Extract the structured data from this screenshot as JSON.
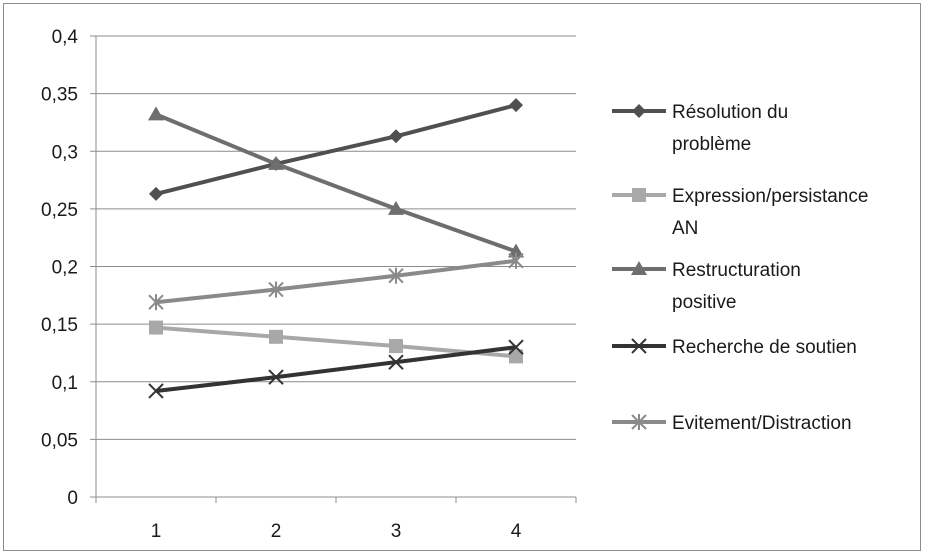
{
  "chart_data": {
    "type": "line",
    "title": "",
    "xlabel": "",
    "ylabel": "",
    "categories": [
      "1",
      "2",
      "3",
      "4"
    ],
    "y_ticks": [
      "0",
      "0,05",
      "0,1",
      "0,15",
      "0,2",
      "0,25",
      "0,3",
      "0,35",
      "0,4"
    ],
    "ylim": [
      0,
      0.4
    ],
    "grid": "horizontal",
    "legend_position": "right",
    "series": [
      {
        "name_lines": [
          "Résolution du",
          "problème"
        ],
        "values": [
          0.263,
          0.289,
          0.313,
          0.34
        ],
        "color": "#505050",
        "marker": "diamond"
      },
      {
        "name_lines": [
          "Expression/persistance",
          "AN"
        ],
        "values": [
          0.147,
          0.139,
          0.131,
          0.122
        ],
        "color": "#a8a8a8",
        "marker": "square"
      },
      {
        "name_lines": [
          "Restructuration",
          "positive"
        ],
        "values": [
          0.332,
          0.289,
          0.25,
          0.213
        ],
        "color": "#6e6e6e",
        "marker": "triangle"
      },
      {
        "name_lines": [
          "Recherche de soutien"
        ],
        "values": [
          0.092,
          0.104,
          0.117,
          0.13
        ],
        "color": "#333333",
        "marker": "x"
      },
      {
        "name_lines": [
          "Evitement/Distraction"
        ],
        "values": [
          0.169,
          0.18,
          0.192,
          0.205
        ],
        "color": "#8a8a8a",
        "marker": "star"
      }
    ]
  }
}
